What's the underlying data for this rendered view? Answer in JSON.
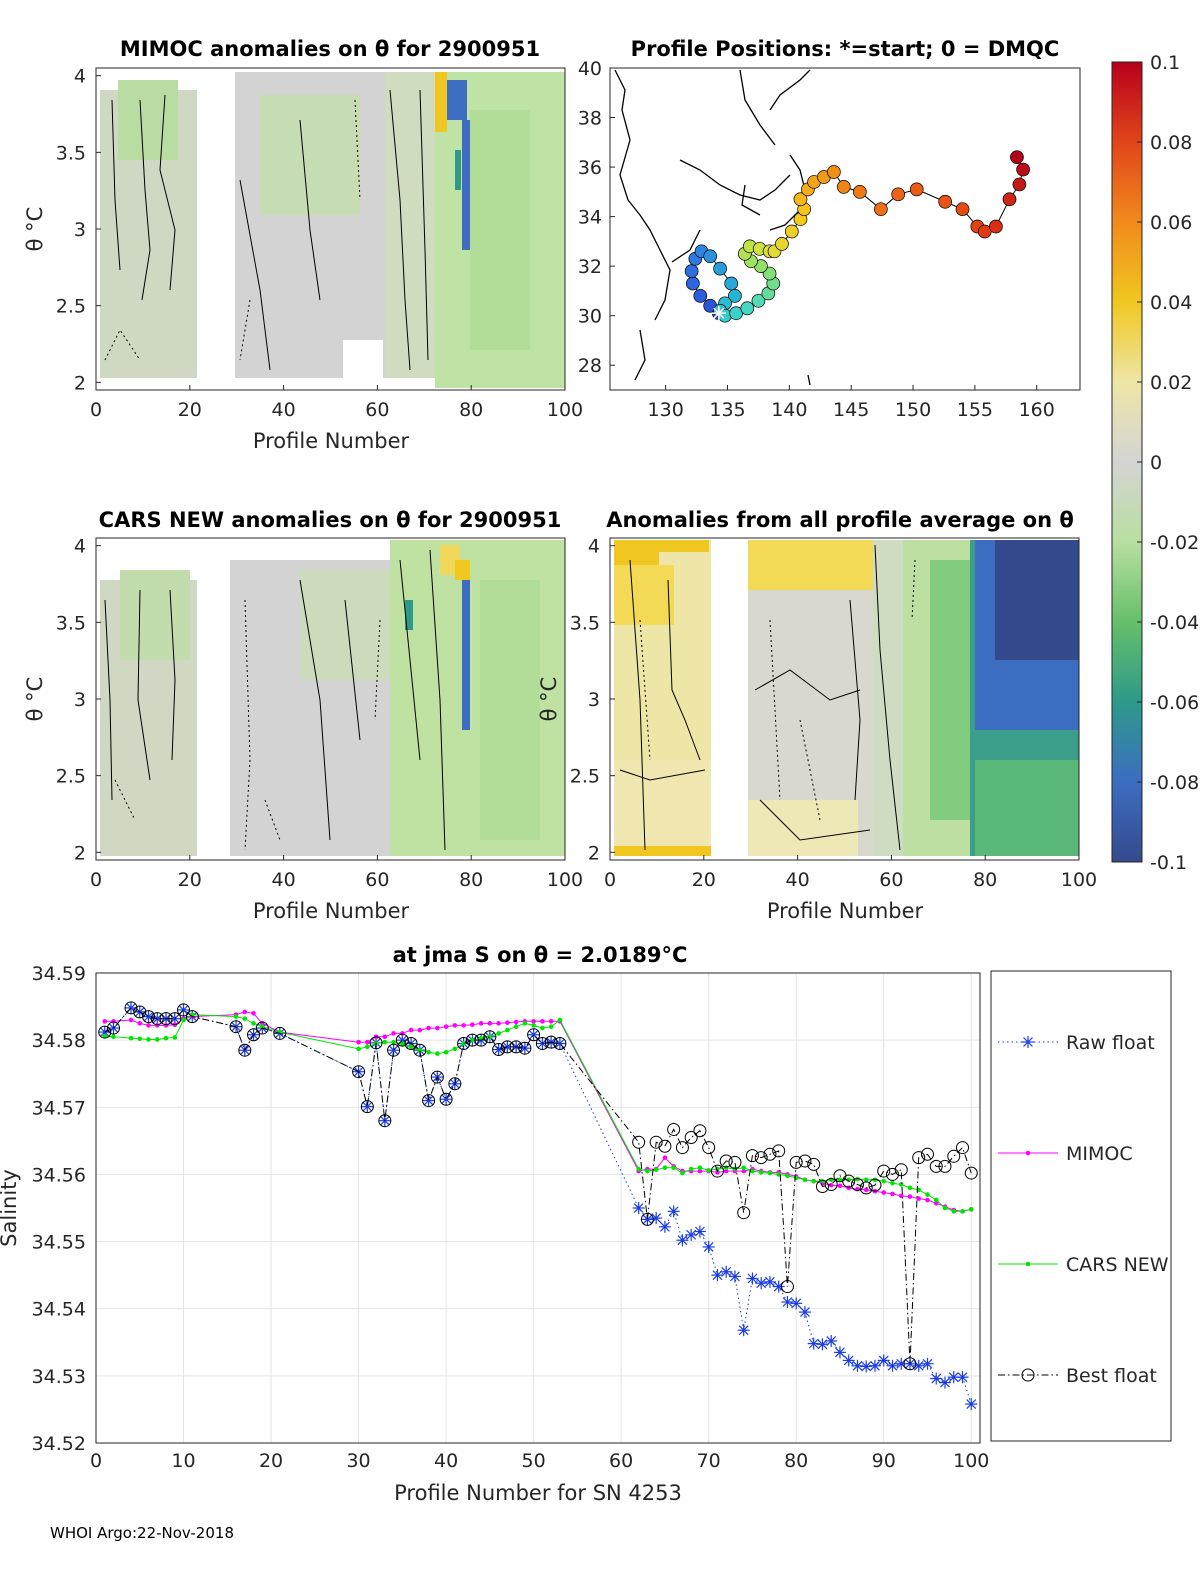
{
  "footer": "WHOI Argo:22-Nov-2018",
  "colorbar": {
    "ticks": [
      "0.1",
      "0.08",
      "0.06",
      "0.04",
      "0.02",
      "0",
      "-0.02",
      "-0.04",
      "-0.06",
      "-0.08",
      "-0.1"
    ],
    "range": [
      -0.1,
      0.1
    ]
  },
  "chart_data": [
    {
      "id": "mimoc",
      "type": "heatmap",
      "title": "MIMOC anomalies on θ  for 2900951",
      "xlabel": "Profile Number",
      "ylabel": "θ °C",
      "xlim": [
        0,
        100
      ],
      "ylim": [
        1.95,
        4.05
      ],
      "xticks": [
        "0",
        "20",
        "40",
        "60",
        "80",
        "100"
      ],
      "yticks": [
        "2",
        "2.5",
        "3",
        "3.5",
        "4"
      ]
    },
    {
      "id": "positions",
      "type": "scatter",
      "title": "Profile Positions: *=start; 0 = DMQC",
      "xlim": [
        125.5,
        163.5
      ],
      "ylim": [
        27,
        40
      ],
      "xticks": [
        "130",
        "135",
        "140",
        "145",
        "150",
        "155",
        "160"
      ],
      "yticks": [
        "28",
        "30",
        "32",
        "34",
        "36",
        "38",
        "40"
      ],
      "lon": [
        134.3,
        133.6,
        132.8,
        132.2,
        132.1,
        132.4,
        132.9,
        133.6,
        134.4,
        135.3,
        135.6,
        134.8,
        134.4,
        134.8,
        135.7,
        136.6,
        137.5,
        138.3,
        138.7,
        138.4,
        137.7,
        136.9,
        136.4,
        136.8,
        137.6,
        138.4,
        138.8,
        139.4,
        140.2,
        140.9,
        141.2,
        140.9,
        141.5,
        142.0,
        142.8,
        143.6,
        144.4,
        145.7,
        147.4,
        148.8,
        150.3,
        152.6,
        154.0,
        155.2,
        155.8,
        156.7,
        157.8,
        158.6,
        158.9,
        158.4
      ],
      "lat": [
        30.1,
        30.4,
        30.8,
        31.3,
        31.8,
        32.3,
        32.6,
        32.4,
        31.9,
        31.3,
        30.8,
        30.5,
        30.2,
        30.0,
        30.1,
        30.3,
        30.6,
        30.9,
        31.3,
        31.7,
        32.0,
        32.2,
        32.5,
        32.8,
        32.7,
        32.6,
        32.6,
        32.9,
        33.4,
        33.9,
        34.3,
        34.7,
        35.1,
        35.4,
        35.6,
        35.8,
        35.2,
        35.0,
        34.3,
        34.9,
        35.1,
        34.6,
        34.3,
        33.6,
        33.4,
        33.6,
        34.7,
        35.3,
        35.9,
        36.4
      ],
      "start": {
        "lon": 134.3,
        "lat": 30.1
      }
    },
    {
      "id": "cars",
      "type": "heatmap",
      "title": "CARS NEW anomalies on θ for 2900951",
      "xlabel": "Profile Number",
      "ylabel": "θ °C",
      "xlim": [
        0,
        100
      ],
      "ylim": [
        1.95,
        4.05
      ],
      "xticks": [
        "0",
        "20",
        "40",
        "60",
        "80",
        "100"
      ],
      "yticks": [
        "2",
        "2.5",
        "3",
        "3.5",
        "4"
      ]
    },
    {
      "id": "allavg",
      "type": "heatmap",
      "title": "Anomalies from all profile average on θ",
      "xlabel": "Profile Number",
      "ylabel": "θ °C",
      "xlim": [
        0,
        100
      ],
      "ylim": [
        1.95,
        4.05
      ],
      "xticks": [
        "0",
        "20",
        "40",
        "60",
        "80",
        "100"
      ],
      "yticks": [
        "2",
        "2.5",
        "3",
        "3.5",
        "4"
      ]
    },
    {
      "id": "salinity",
      "type": "line",
      "title": "at jma S on θ = 2.0189°C",
      "xlabel": "Profile Number for SN 4253",
      "ylabel": "Salinity",
      "xlim": [
        0,
        101
      ],
      "ylim": [
        34.52,
        34.59
      ],
      "xticks": [
        "0",
        "10",
        "20",
        "30",
        "40",
        "50",
        "60",
        "70",
        "80",
        "90",
        "100"
      ],
      "yticks": [
        "34.52",
        "34.53",
        "34.54",
        "34.55",
        "34.56",
        "34.57",
        "34.58",
        "34.59"
      ],
      "legend": [
        "Raw float",
        "MIMOC",
        "CARS NEW",
        "Best float"
      ],
      "legend_position": "right",
      "x": [
        1,
        2,
        4,
        5,
        6,
        7,
        8,
        9,
        10,
        11,
        16,
        17,
        18,
        19,
        21,
        30,
        31,
        32,
        33,
        34,
        35,
        36,
        37,
        38,
        39,
        40,
        41,
        42,
        43,
        44,
        45,
        46,
        47,
        48,
        49,
        50,
        51,
        52,
        53,
        62,
        63,
        64,
        65,
        66,
        67,
        68,
        69,
        70,
        71,
        72,
        73,
        74,
        75,
        76,
        77,
        78,
        79,
        80,
        81,
        82,
        83,
        84,
        85,
        86,
        87,
        88,
        89,
        90,
        91,
        92,
        93,
        94,
        95,
        96,
        97,
        98,
        99,
        100
      ],
      "series": [
        {
          "name": "Raw float",
          "values": [
            34.5812,
            34.5818,
            34.5848,
            34.5842,
            34.5835,
            34.5832,
            34.5832,
            34.5832,
            34.5845,
            34.5835,
            34.582,
            34.5785,
            34.5808,
            34.5818,
            34.581,
            34.5753,
            34.5701,
            34.5796,
            34.568,
            34.5785,
            34.58,
            34.5795,
            34.5785,
            34.571,
            34.5745,
            34.5712,
            34.5735,
            34.5795,
            34.58,
            34.58,
            34.5805,
            34.5786,
            34.579,
            34.579,
            34.5788,
            34.5808,
            34.5795,
            34.5797,
            34.5795,
            34.555,
            34.5533,
            34.5535,
            34.5522,
            34.5545,
            34.5502,
            34.551,
            34.5515,
            34.5492,
            34.545,
            34.5455,
            34.5448,
            34.5368,
            34.5445,
            34.5438,
            34.544,
            34.5433,
            34.541,
            34.5408,
            34.5395,
            34.5348,
            34.5347,
            34.5352,
            34.5335,
            34.5323,
            34.5315,
            34.5314,
            34.5315,
            34.5323,
            34.5315,
            34.5318,
            34.5318,
            34.5315,
            34.5318,
            34.5296,
            34.529,
            34.5298,
            34.5298,
            34.5258
          ]
        },
        {
          "name": "MIMOC",
          "values": [
            34.5828,
            34.5828,
            34.583,
            34.5825,
            34.5822,
            34.5822,
            34.5822,
            34.5823,
            34.5832,
            34.5835,
            34.5838,
            34.5842,
            34.584,
            34.5825,
            34.5812,
            34.5797,
            34.5797,
            34.5805,
            34.5805,
            34.581,
            34.581,
            34.5815,
            34.5815,
            34.5818,
            34.5818,
            34.582,
            34.5822,
            34.5822,
            34.5823,
            34.5825,
            34.5825,
            34.5825,
            34.5826,
            34.5827,
            34.5828,
            34.5828,
            34.5828,
            34.5828,
            34.5828,
            34.5605,
            34.5608,
            34.5608,
            34.5625,
            34.5612,
            34.5605,
            34.5605,
            34.5605,
            34.5605,
            34.5603,
            34.5605,
            34.5605,
            34.5605,
            34.5608,
            34.5605,
            34.5603,
            34.5603,
            34.56,
            34.5597,
            34.5592,
            34.559,
            34.5587,
            34.5584,
            34.5583,
            34.558,
            34.5578,
            34.5577,
            34.5575,
            34.5573,
            34.5571,
            34.5568,
            34.5567,
            34.5564,
            34.5562,
            34.5557,
            34.5552,
            34.5547,
            34.5545,
            34.5548
          ]
        },
        {
          "name": "CARS NEW",
          "values": [
            34.5806,
            34.5805,
            34.5803,
            34.5802,
            34.5801,
            34.5801,
            34.5803,
            34.5804,
            34.583,
            34.5838,
            34.5835,
            34.5832,
            34.5825,
            34.582,
            34.5812,
            34.5787,
            34.579,
            34.5795,
            34.5797,
            34.5797,
            34.5795,
            34.579,
            34.5785,
            34.5782,
            34.578,
            34.5782,
            34.5787,
            34.5795,
            34.58,
            34.5803,
            34.5805,
            34.581,
            34.5815,
            34.582,
            34.5825,
            34.5822,
            34.5818,
            34.582,
            34.583,
            34.5608,
            34.5605,
            34.5607,
            34.561,
            34.561,
            34.5602,
            34.5608,
            34.561,
            34.5606,
            34.5608,
            34.561,
            34.5608,
            34.561,
            34.5605,
            34.5603,
            34.5602,
            34.56,
            34.5598,
            34.5595,
            34.5592,
            34.559,
            34.559,
            34.5592,
            34.5592,
            34.5592,
            34.5593,
            34.5592,
            34.5592,
            34.559,
            34.5587,
            34.5585,
            34.558,
            34.5577,
            34.557,
            34.5562,
            34.555,
            34.5545,
            34.5545,
            34.5548
          ]
        },
        {
          "name": "Best float",
          "values": [
            34.5812,
            34.5818,
            34.5848,
            34.5842,
            34.5835,
            34.5832,
            34.5832,
            34.5832,
            34.5845,
            34.5835,
            34.582,
            34.5785,
            34.5808,
            34.5818,
            34.581,
            34.5753,
            34.5701,
            34.5796,
            34.568,
            34.5785,
            34.58,
            34.5795,
            34.5785,
            34.571,
            34.5745,
            34.5712,
            34.5735,
            34.5795,
            34.58,
            34.58,
            34.5805,
            34.5786,
            34.579,
            34.579,
            34.5788,
            34.5808,
            34.5795,
            34.5797,
            34.5795,
            34.5648,
            34.5533,
            34.5648,
            34.5642,
            34.5667,
            34.564,
            34.5655,
            34.5665,
            34.564,
            34.5605,
            34.562,
            34.5618,
            34.5543,
            34.5628,
            34.5625,
            34.563,
            34.5635,
            34.5433,
            34.5618,
            34.562,
            34.5615,
            34.5582,
            34.5585,
            34.5598,
            34.559,
            34.5585,
            34.558,
            34.5584,
            34.5605,
            34.56,
            34.5607,
            34.5318,
            34.5625,
            34.563,
            34.5612,
            34.5612,
            34.5627,
            34.564,
            34.5602
          ]
        }
      ]
    }
  ]
}
